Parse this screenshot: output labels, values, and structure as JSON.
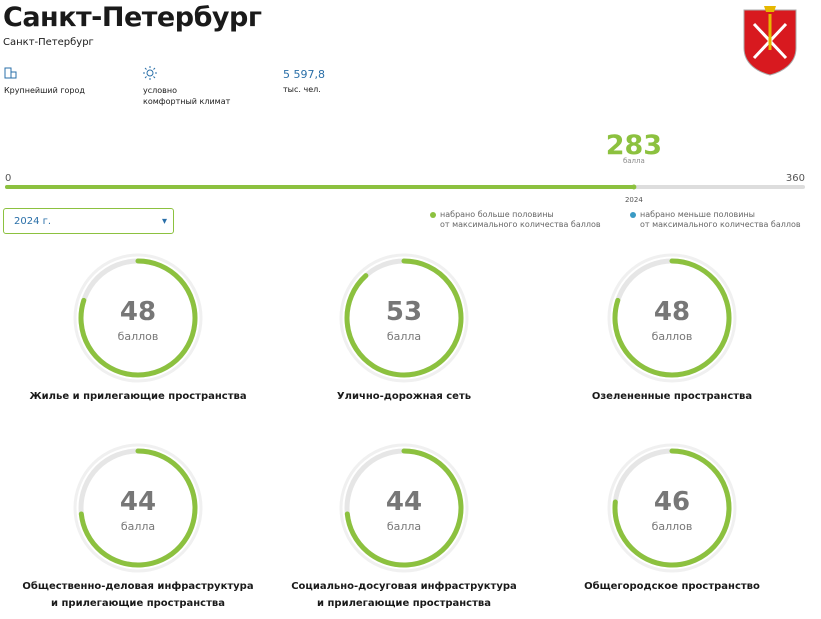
{
  "header": {
    "title": "Санкт-Петербург",
    "subtitle": "Санкт-Петербург"
  },
  "facts": [
    {
      "lines": [
        "Крупнейший город"
      ]
    },
    {
      "lines": [
        "условно",
        "комфортный климат"
      ]
    },
    {
      "value": "5 597,8",
      "lines": [
        "тыс. чел."
      ]
    }
  ],
  "score": {
    "value": 283,
    "unit": "балла",
    "min": 0,
    "max": 360,
    "marker_label": "2024"
  },
  "year_select": "2024 г.",
  "legend": [
    {
      "color": "#8cc13f",
      "lines": [
        "набрано больше половины",
        "от максимального количества баллов"
      ]
    },
    {
      "color": "#3a9ac4",
      "lines": [
        "набрано меньше половины",
        "от максимального количества баллов"
      ]
    }
  ],
  "indicators": [
    {
      "value": 48,
      "unit": "баллов",
      "lines": [
        "Жилье и прилегающие пространства"
      ]
    },
    {
      "value": 53,
      "unit": "балла",
      "lines": [
        "Улично-дорожная сеть"
      ]
    },
    {
      "value": 48,
      "unit": "баллов",
      "lines": [
        "Озелененные пространства"
      ]
    },
    {
      "value": 44,
      "unit": "балла",
      "lines": [
        "Общественно-деловая инфраструктура",
        "и прилегающие пространства"
      ]
    },
    {
      "value": 44,
      "unit": "балла",
      "lines": [
        "Социально-досуговая инфраструктура",
        "и прилегающие пространства"
      ]
    },
    {
      "value": 46,
      "unit": "баллов",
      "lines": [
        "Общегородское пространство"
      ]
    }
  ]
}
